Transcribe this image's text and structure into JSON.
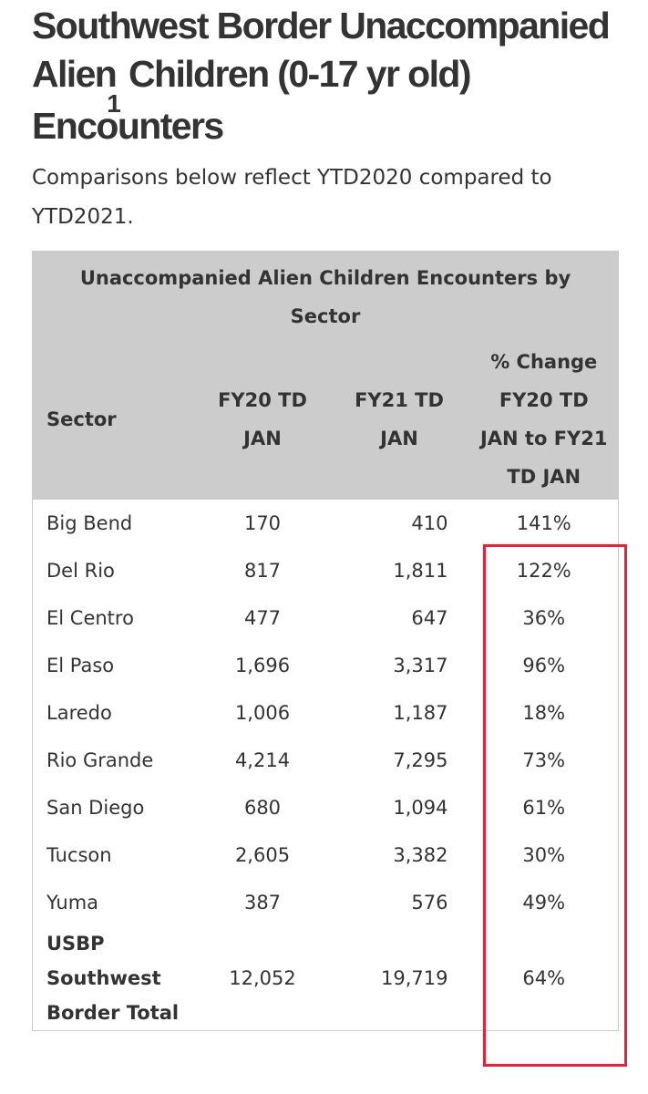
{
  "header": {
    "title_start": "Southwest Border Unaccompanied Alien",
    "footnote_marker": "1",
    "title_end": " Children (0-17 yr old) Encounters",
    "subtitle": "Comparisons below reflect YTD2020 compared to YTD2021."
  },
  "table": {
    "caption": "Unaccompanied Alien Children Encounters by Sector",
    "columns": [
      "Sector",
      "FY20 TD JAN",
      "FY21 TD JAN",
      "% Change FY20 TD JAN to FY21 TD JAN"
    ],
    "rows": [
      [
        "Big Bend",
        "170",
        "410",
        "141%"
      ],
      [
        "Del Rio",
        "817",
        "1,811",
        "122%"
      ],
      [
        "El Centro",
        "477",
        "647",
        "36%"
      ],
      [
        "El Paso",
        "1,696",
        "3,317",
        "96%"
      ],
      [
        "Laredo",
        "1,006",
        "1,187",
        "18%"
      ],
      [
        "Rio Grande",
        "4,214",
        "7,295",
        "73%"
      ],
      [
        "San Diego",
        "680",
        "1,094",
        "61%"
      ],
      [
        "Tucson",
        "2,605",
        "3,382",
        "30%"
      ],
      [
        "Yuma",
        "387",
        "576",
        "49%"
      ]
    ],
    "total": [
      "USBP Southwest Border Total",
      "12,052",
      "19,719",
      "64%"
    ]
  }
}
